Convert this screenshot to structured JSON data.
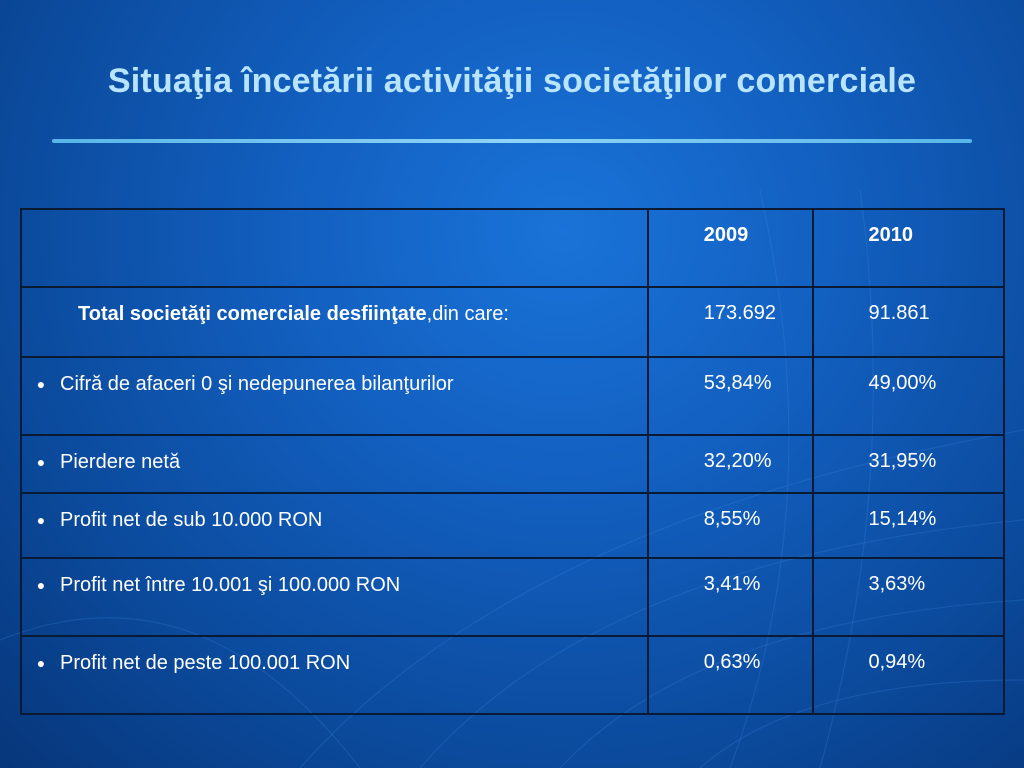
{
  "slide": {
    "title": "Situaţia încetării activităţii societăţilor comerciale"
  },
  "table": {
    "header": {
      "year_2009": "2009",
      "year_2010": "2010"
    },
    "total": {
      "label_bold": "Total societăţi comerciale desfiinţate",
      "label_rest": ",din care:",
      "v2009": "173.692",
      "v2010": "91.861"
    },
    "rows": [
      {
        "label": "Cifră de afaceri 0 şi nedepunerea bilanţurilor",
        "v2009": "53,84%",
        "v2010": "49,00%"
      },
      {
        "label": "Pierdere netă",
        "v2009": "32,20%",
        "v2010": "31,95%"
      },
      {
        "label": "Profit net de sub 10.000 RON",
        "v2009": "8,55%",
        "v2010": "15,14%"
      },
      {
        "label": "Profit net între 10.001 şi 100.000 RON",
        "v2009": "3,41%",
        "v2010": "3,63%"
      },
      {
        "label": "Profit net de peste 100.001 RON",
        "v2009": "0,63%",
        "v2010": "0,94%"
      }
    ],
    "bullet_symbol": "●"
  },
  "theme": {
    "background": "#125fbf",
    "title_color": "#b8e4ff",
    "rule_color": "#8fd3f5",
    "grid_color": "#0a1a33"
  }
}
